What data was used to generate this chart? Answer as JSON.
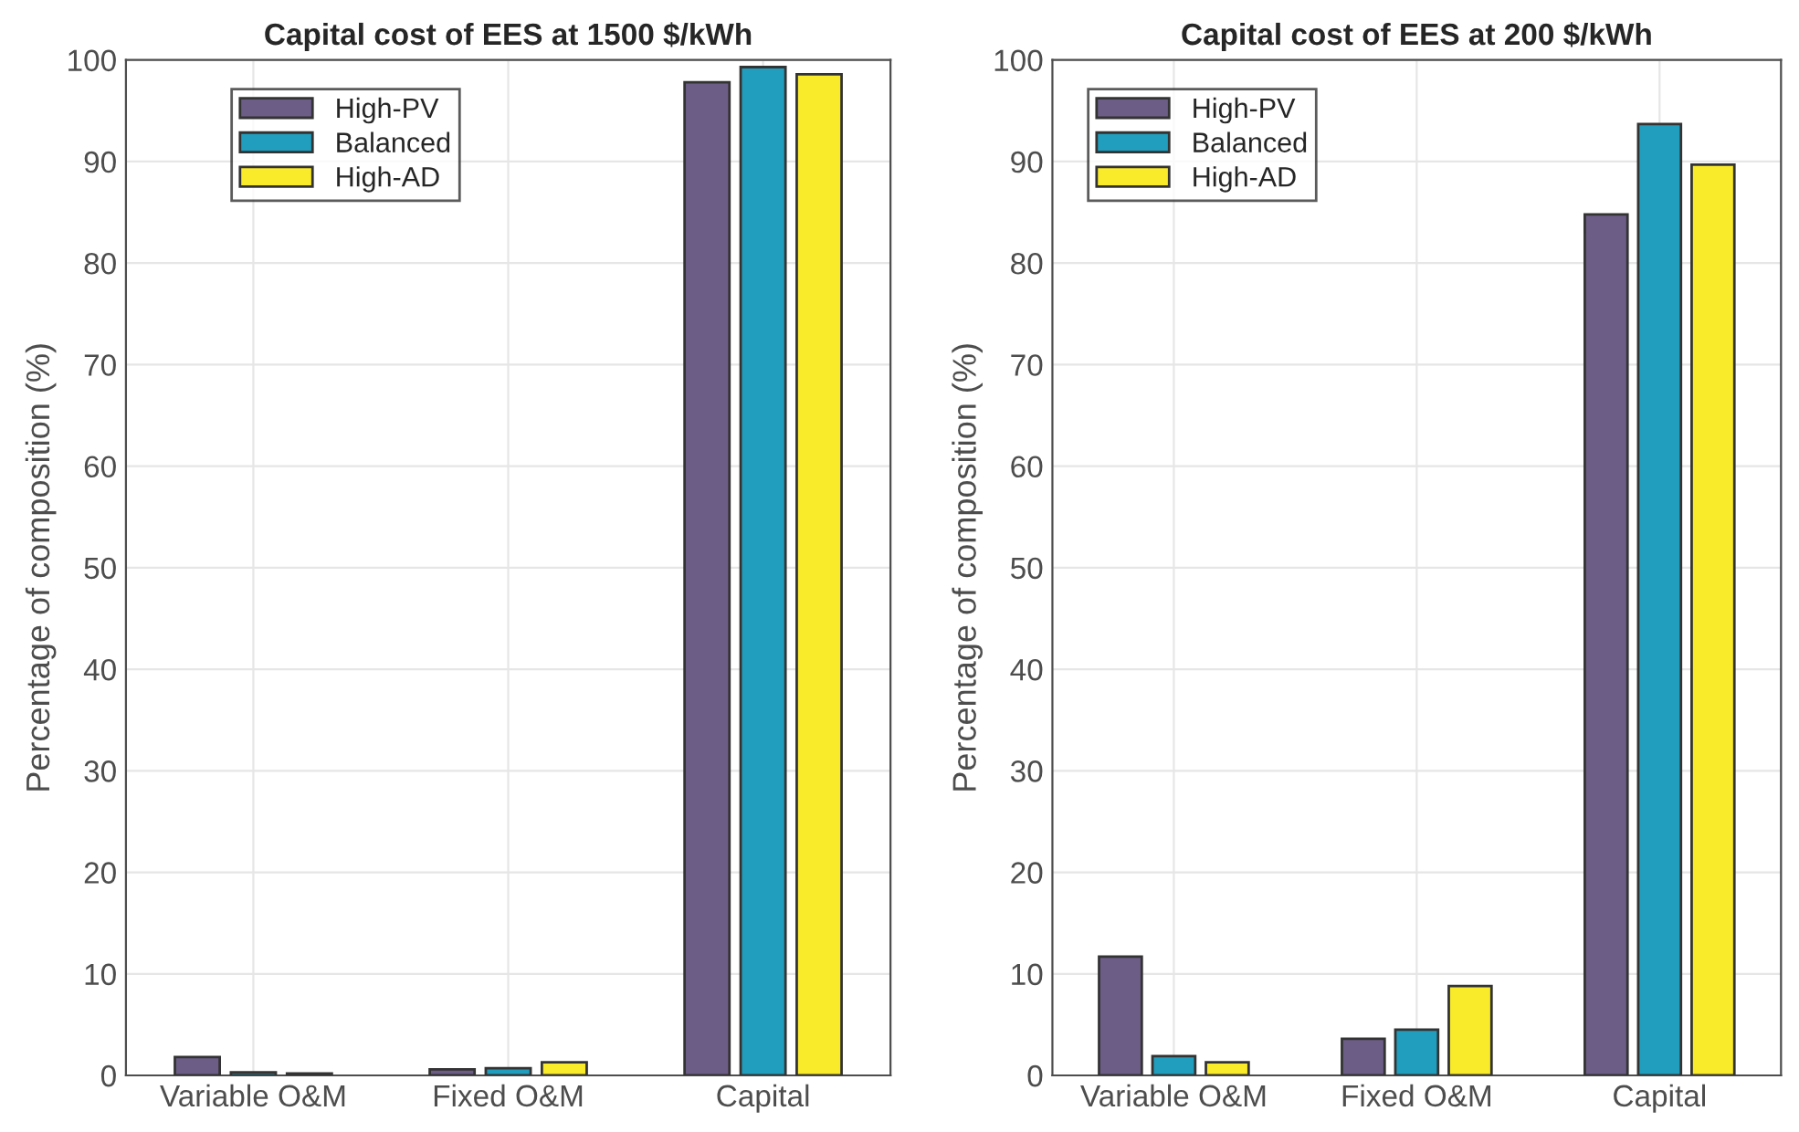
{
  "chart_data": [
    {
      "type": "bar",
      "title": "Capital cost of EES at 1500 $/kWh",
      "ylabel": "Percentage of composition (%)",
      "categories": [
        "Variable O&M",
        "Fixed O&M",
        "Capital"
      ],
      "series": [
        {
          "name": "High-PV",
          "color": "#6c5d87",
          "values": [
            1.8,
            0.6,
            97.8
          ]
        },
        {
          "name": "Balanced",
          "color": "#219ebd",
          "values": [
            0.3,
            0.7,
            99.3
          ]
        },
        {
          "name": "High-AD",
          "color": "#f9ea2a",
          "values": [
            0.2,
            1.3,
            98.6
          ]
        }
      ],
      "ylim": [
        0,
        100
      ],
      "yticks": [
        0,
        10,
        20,
        30,
        40,
        50,
        60,
        70,
        80,
        90,
        100
      ],
      "grid": true,
      "legend": "top left"
    },
    {
      "type": "bar",
      "title": "Capital cost of EES at 200 $/kWh",
      "ylabel": "Percentage of composition (%)",
      "categories": [
        "Variable O&M",
        "Fixed O&M",
        "Capital"
      ],
      "series": [
        {
          "name": "High-PV",
          "color": "#6c5d87",
          "values": [
            11.7,
            3.6,
            84.8
          ]
        },
        {
          "name": "Balanced",
          "color": "#219ebd",
          "values": [
            1.9,
            4.5,
            93.7
          ]
        },
        {
          "name": "High-AD",
          "color": "#f9ea2a",
          "values": [
            1.3,
            8.8,
            89.7
          ]
        }
      ],
      "ylim": [
        0,
        100
      ],
      "yticks": [
        0,
        10,
        20,
        30,
        40,
        50,
        60,
        70,
        80,
        90,
        100
      ],
      "grid": true,
      "legend": "top left"
    }
  ]
}
